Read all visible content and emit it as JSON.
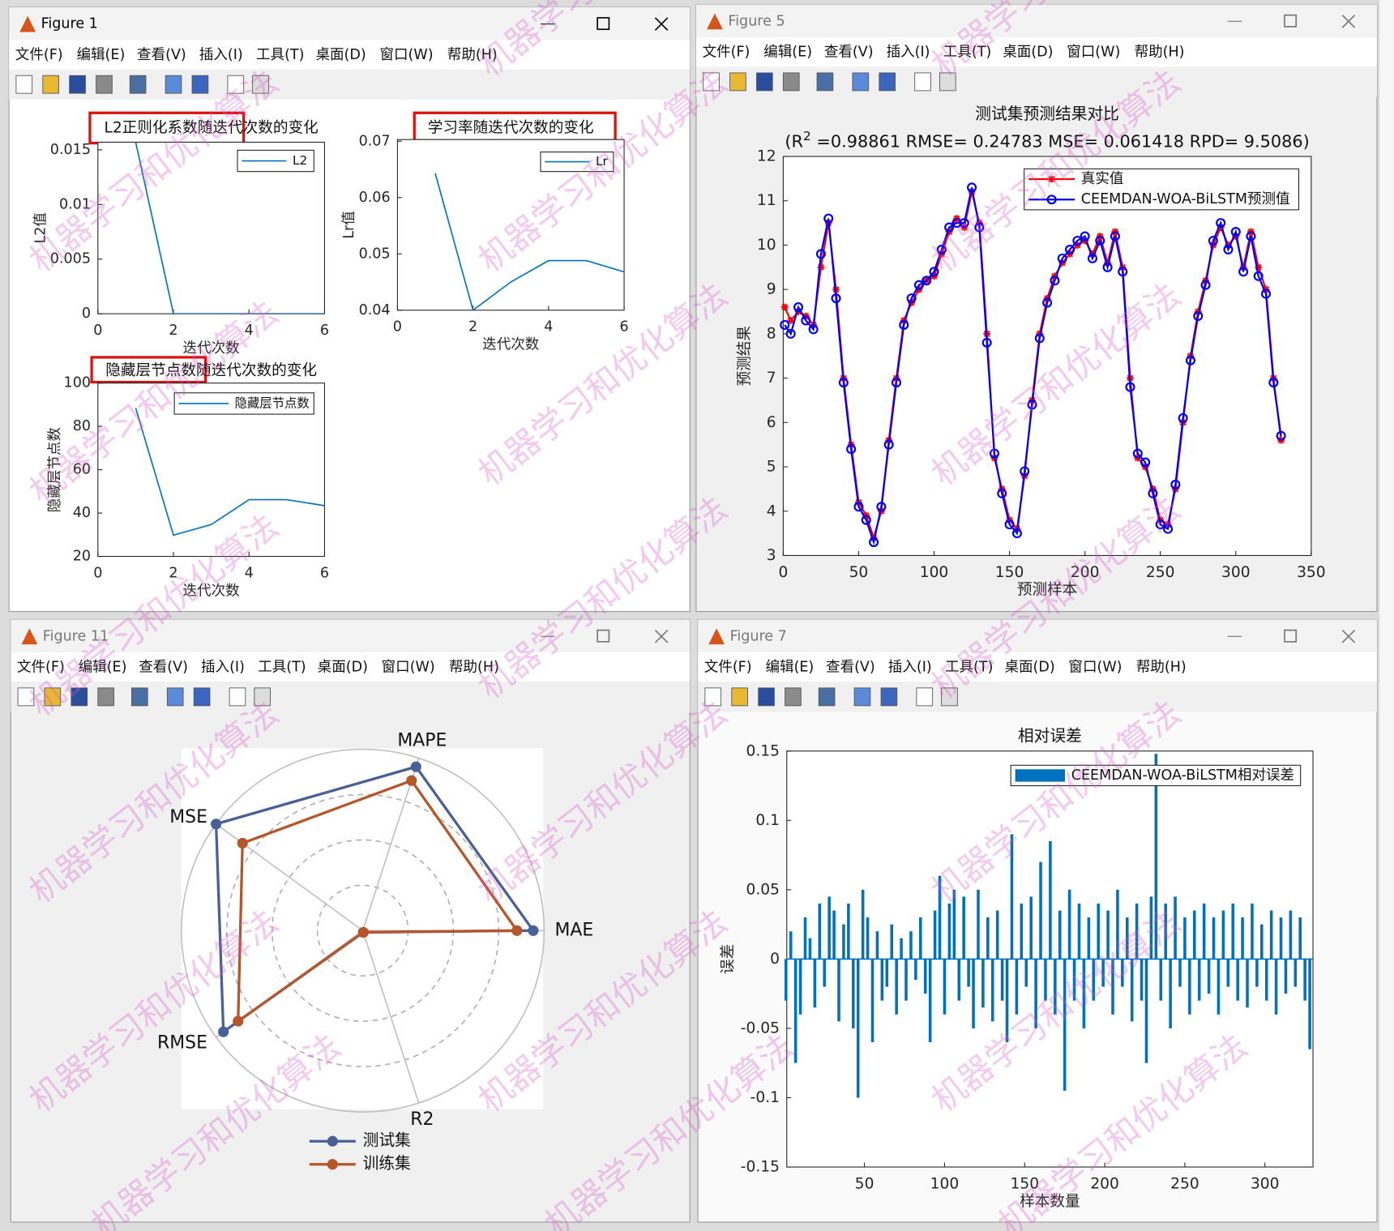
{
  "watermark": "机器学习和优化算法",
  "menu": [
    "文件(F)",
    "编辑(E)",
    "查看(V)",
    "插入(I)",
    "工具(T)",
    "桌面(D)",
    "窗口(W)",
    "帮助(H)"
  ],
  "windows": [
    {
      "title": "Figure 1",
      "charts": [
        {
          "type": "line",
          "title": "L2正则化系数随迭代次数的变化",
          "xlabel": "迭代次数",
          "ylabel": "L2值",
          "x": [
            1,
            2,
            3,
            4,
            5,
            6
          ],
          "series": [
            {
              "name": "L2",
              "color": "#0072bd",
              "values": [
                0.0157,
                0,
                0,
                0,
                0,
                0
              ]
            }
          ],
          "xlim": [
            0,
            6
          ],
          "xticks": [
            0,
            2,
            4,
            6
          ],
          "ylim": [
            0,
            0.0157
          ],
          "yticks": [
            0,
            0.005,
            0.01,
            0.015
          ],
          "legend": "northeast"
        },
        {
          "type": "line",
          "title": "学习率随迭代次数的变化",
          "xlabel": "迭代次数",
          "ylabel": "Lr值",
          "x": [
            1,
            2,
            3,
            4,
            5,
            6
          ],
          "series": [
            {
              "name": "Lr",
              "color": "#0072bd",
              "values": [
                0.0643,
                0.04,
                0.045,
                0.0488,
                0.0488,
                0.0468
              ]
            }
          ],
          "xlim": [
            0,
            6
          ],
          "xticks": [
            0,
            2,
            4,
            6
          ],
          "ylim": [
            0.04,
            0.0703
          ],
          "yticks": [
            0.04,
            0.05,
            0.06,
            0.07
          ],
          "legend": "northeast"
        },
        {
          "type": "line",
          "title": "隐藏层节点数随迭代次数的变化",
          "xlabel": "迭代次数",
          "ylabel": "隐藏层节点数",
          "x": [
            1,
            2,
            3,
            4,
            5,
            6
          ],
          "series": [
            {
              "name": "隐藏层节点数",
              "color": "#0072bd",
              "values": [
                88.5,
                29.8,
                34.7,
                46.2,
                46.2,
                43.4
              ]
            }
          ],
          "xlim": [
            0,
            6
          ],
          "xticks": [
            0,
            2,
            4,
            6
          ],
          "ylim": [
            20,
            100
          ],
          "yticks": [
            20,
            40,
            60,
            80,
            100
          ],
          "legend": "northeast"
        }
      ]
    },
    {
      "title": "Figure 5",
      "charts": [
        {
          "type": "line",
          "title": "测试集预测结果对比",
          "subtitle": [
            "(R",
            "2",
            " =0.98861 RMSE= 0.24783 MSE= 0.061418 RPD= 9.5086)"
          ],
          "xlabel": "预测样本",
          "ylabel": "预测结果",
          "x": [
            1,
            5,
            10,
            15,
            20,
            25,
            30,
            35,
            40,
            45,
            50,
            55,
            60,
            65,
            70,
            75,
            80,
            85,
            90,
            95,
            100,
            105,
            110,
            115,
            120,
            125,
            130,
            135,
            140,
            145,
            150,
            155,
            160,
            165,
            170,
            175,
            180,
            185,
            190,
            195,
            200,
            205,
            210,
            215,
            220,
            225,
            230,
            235,
            240,
            245,
            250,
            255,
            260,
            265,
            270,
            275,
            280,
            285,
            290,
            295,
            300,
            305,
            310,
            315,
            320,
            325,
            330
          ],
          "series": [
            {
              "name": "真实值",
              "color": "#ff0000",
              "marker": "*",
              "values": [
                8.6,
                8.3,
                8.5,
                8.4,
                8.2,
                9.5,
                10.5,
                9,
                7,
                5.5,
                4.2,
                3.9,
                3.4,
                4,
                5.6,
                7,
                8.3,
                8.7,
                9,
                9.2,
                9.3,
                9.8,
                10.3,
                10.6,
                10.4,
                11.2,
                10.5,
                8,
                5.2,
                4.5,
                3.8,
                3.6,
                4.8,
                6.5,
                8,
                8.8,
                9.3,
                9.6,
                9.8,
                10,
                10.1,
                9.8,
                10.2,
                9.6,
                10.3,
                9.5,
                7,
                5.2,
                5,
                4.5,
                3.8,
                3.7,
                4.5,
                6,
                7.5,
                8.5,
                9.2,
                10,
                10.4,
                10,
                10.2,
                9.5,
                10.3,
                9.5,
                9,
                7,
                5.6
              ]
            },
            {
              "name": "CEEMDAN-WOA-BiLSTM预测值",
              "color": "#0000ff",
              "marker": "o",
              "values": [
                8.2,
                8.0,
                8.6,
                8.3,
                8.1,
                9.8,
                10.6,
                8.8,
                6.9,
                5.4,
                4.1,
                3.8,
                3.3,
                4.1,
                5.5,
                6.9,
                8.2,
                8.8,
                9.1,
                9.2,
                9.4,
                9.9,
                10.4,
                10.5,
                10.5,
                11.3,
                10.4,
                7.8,
                5.3,
                4.4,
                3.7,
                3.5,
                4.9,
                6.4,
                7.9,
                8.7,
                9.2,
                9.7,
                9.9,
                10.1,
                10.2,
                9.7,
                10.1,
                9.5,
                10.2,
                9.4,
                6.8,
                5.3,
                5.1,
                4.4,
                3.7,
                3.6,
                4.6,
                6.1,
                7.4,
                8.4,
                9.1,
                10.1,
                10.5,
                9.9,
                10.3,
                9.4,
                10.2,
                9.3,
                8.9,
                6.9,
                5.7
              ]
            }
          ],
          "xlim": [
            0,
            350
          ],
          "xticks": [
            0,
            50,
            100,
            150,
            200,
            250,
            300,
            350
          ],
          "ylim": [
            3,
            12
          ],
          "yticks": [
            3,
            4,
            5,
            6,
            7,
            8,
            9,
            10,
            11,
            12
          ],
          "legend": "northeast"
        }
      ]
    },
    {
      "title": "Figure 11",
      "charts": [
        {
          "type": "radar",
          "axes": [
            "MAE",
            "MAPE",
            "MSE",
            "RMSE",
            "R2"
          ],
          "rlim": [
            0,
            1
          ],
          "series": [
            {
              "name": "测试集",
              "color": "#4a5f96",
              "values": [
                0.94,
                0.95,
                1.0,
                0.95,
                0.01
              ]
            },
            {
              "name": "训练集",
              "color": "#b5562a",
              "values": [
                0.85,
                0.87,
                0.82,
                0.85,
                0.01
              ]
            }
          ],
          "legend": "south"
        }
      ]
    },
    {
      "title": "Figure 7",
      "charts": [
        {
          "type": "bar",
          "title": "相对误差",
          "xlabel": "样本数量",
          "ylabel": "误差",
          "x": [
            1,
            4,
            7,
            10,
            13,
            16,
            19,
            22,
            25,
            28,
            31,
            34,
            37,
            40,
            43,
            46,
            49,
            52,
            55,
            58,
            61,
            64,
            67,
            70,
            73,
            76,
            79,
            82,
            85,
            88,
            91,
            94,
            97,
            100,
            103,
            106,
            109,
            112,
            115,
            118,
            121,
            124,
            127,
            130,
            133,
            136,
            139,
            142,
            145,
            148,
            151,
            154,
            157,
            160,
            163,
            166,
            169,
            172,
            175,
            178,
            181,
            184,
            187,
            190,
            193,
            196,
            199,
            202,
            205,
            208,
            211,
            214,
            217,
            220,
            223,
            226,
            229,
            232,
            235,
            238,
            241,
            244,
            247,
            250,
            253,
            256,
            259,
            262,
            265,
            268,
            271,
            274,
            277,
            280,
            283,
            286,
            289,
            292,
            295,
            298,
            301,
            304,
            307,
            310,
            313,
            316,
            319,
            322,
            325,
            328
          ],
          "series": [
            {
              "name": "CEEMDAN-WOA-BiLSTM相对误差",
              "color": "#0072bd",
              "values": [
                -0.03,
                0.02,
                -0.075,
                -0.04,
                0.03,
                0.015,
                -0.035,
                0.04,
                -0.02,
                0.045,
                0.035,
                -0.045,
                0.025,
                0.04,
                -0.05,
                -0.1,
                0.05,
                0.03,
                -0.06,
                0.02,
                -0.03,
                -0.02,
                0.025,
                -0.04,
                0.015,
                -0.03,
                0.02,
                -0.015,
                0.03,
                -0.025,
                -0.06,
                0.035,
                0.06,
                -0.04,
                0.04,
                0.05,
                -0.03,
                0.045,
                -0.02,
                -0.05,
                0.05,
                -0.035,
                0.03,
                -0.045,
                0.035,
                -0.03,
                -0.06,
                0.09,
                -0.04,
                0.04,
                -0.02,
                0.045,
                -0.05,
                0.07,
                -0.03,
                0.085,
                -0.04,
                0.035,
                -0.095,
                0.05,
                -0.03,
                0.04,
                -0.05,
                0.03,
                -0.03,
                0.04,
                -0.02,
                0.035,
                -0.04,
                0.05,
                -0.02,
                0.03,
                -0.045,
                0.04,
                -0.03,
                -0.075,
                0.045,
                0.148,
                -0.03,
                0.04,
                -0.05,
                0.045,
                -0.02,
                0.03,
                -0.04,
                0.035,
                -0.03,
                0.04,
                -0.025,
                0.03,
                -0.04,
                0.035,
                -0.02,
                0.04,
                -0.03,
                0.03,
                -0.035,
                0.04,
                -0.02,
                0.025,
                -0.03,
                0.035,
                -0.04,
                0.03,
                -0.025,
                0.035,
                -0.02,
                0.03,
                -0.03,
                -0.065
              ]
            }
          ],
          "xlim": [
            1.5,
            330
          ],
          "xticks": [
            50,
            100,
            150,
            200,
            250,
            300
          ],
          "ylim": [
            -0.15,
            0.15
          ],
          "yticks": [
            -0.15,
            -0.1,
            -0.05,
            0,
            0.05,
            0.1,
            0.15
          ],
          "legend": "northeast"
        }
      ]
    }
  ]
}
